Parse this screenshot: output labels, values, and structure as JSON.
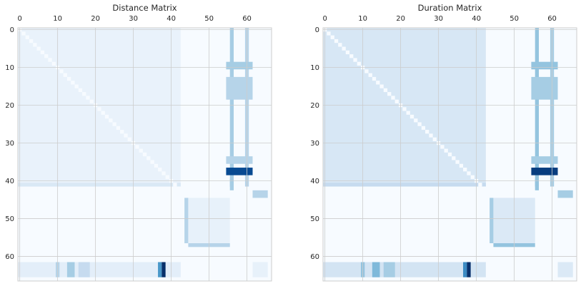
{
  "chart_data": [
    {
      "type": "heatmap",
      "title": "Distance Matrix",
      "size": 67,
      "x_ticks": [
        0,
        10,
        20,
        30,
        40,
        50,
        60
      ],
      "y_ticks": [
        0,
        10,
        20,
        30,
        40,
        50,
        60
      ],
      "xlim": [
        0,
        66
      ],
      "ylim": [
        66,
        0
      ],
      "x_axis_position": "top",
      "colormap": "Blues",
      "grid": true,
      "background_color": "#f7fbff",
      "regions": [
        {
          "rows": [
            0,
            42
          ],
          "cols": [
            0,
            43
          ],
          "value": 0.07
        },
        {
          "rows": [
            0,
            42
          ],
          "cols": [
            56,
            57
          ],
          "value": 0.35
        },
        {
          "rows": [
            0,
            42
          ],
          "cols": [
            60,
            61
          ],
          "value": 0.3
        },
        {
          "rows": [
            9,
            11
          ],
          "cols": [
            55,
            62
          ],
          "value": 0.35
        },
        {
          "rows": [
            13,
            19
          ],
          "cols": [
            55,
            62
          ],
          "value": 0.3
        },
        {
          "rows": [
            34,
            36
          ],
          "cols": [
            55,
            62
          ],
          "value": 0.3
        },
        {
          "rows": [
            37,
            39
          ],
          "cols": [
            55,
            62
          ],
          "value": 0.9
        },
        {
          "rows": [
            40,
            43
          ],
          "cols": [
            56,
            57
          ],
          "value": 0.35
        },
        {
          "rows": [
            41,
            42
          ],
          "cols": [
            0,
            43
          ],
          "value": 0.15
        },
        {
          "rows": [
            43,
            45
          ],
          "cols": [
            62,
            66
          ],
          "value": 0.3
        },
        {
          "rows": [
            45,
            57
          ],
          "cols": [
            44,
            45
          ],
          "value": 0.3
        },
        {
          "rows": [
            45,
            57
          ],
          "cols": [
            45,
            56
          ],
          "value": 0.08
        },
        {
          "rows": [
            57,
            58
          ],
          "cols": [
            45,
            56
          ],
          "value": 0.3
        },
        {
          "rows": [
            62,
            66
          ],
          "cols": [
            0,
            43
          ],
          "value": 0.1
        },
        {
          "rows": [
            62,
            66
          ],
          "cols": [
            10,
            11
          ],
          "value": 0.3
        },
        {
          "rows": [
            62,
            66
          ],
          "cols": [
            13,
            15
          ],
          "value": 0.35
        },
        {
          "rows": [
            62,
            66
          ],
          "cols": [
            16,
            19
          ],
          "value": 0.25
        },
        {
          "rows": [
            62,
            66
          ],
          "cols": [
            37,
            38
          ],
          "value": 0.6
        },
        {
          "rows": [
            62,
            66
          ],
          "cols": [
            38,
            39
          ],
          "value": 1.0
        },
        {
          "rows": [
            62,
            66
          ],
          "cols": [
            62,
            66
          ],
          "value": 0.08
        }
      ]
    },
    {
      "type": "heatmap",
      "title": "Duration Matrix",
      "size": 67,
      "x_ticks": [
        0,
        10,
        20,
        30,
        40,
        50,
        60
      ],
      "y_ticks": [
        0,
        10,
        20,
        30,
        40,
        50,
        60
      ],
      "xlim": [
        0,
        66
      ],
      "ylim": [
        66,
        0
      ],
      "x_axis_position": "top",
      "colormap": "Blues",
      "grid": true,
      "background_color": "#f7fbff",
      "regions": [
        {
          "rows": [
            0,
            42
          ],
          "cols": [
            0,
            43
          ],
          "value": 0.16
        },
        {
          "rows": [
            0,
            42
          ],
          "cols": [
            56,
            57
          ],
          "value": 0.4
        },
        {
          "rows": [
            0,
            42
          ],
          "cols": [
            60,
            61
          ],
          "value": 0.35
        },
        {
          "rows": [
            9,
            11
          ],
          "cols": [
            55,
            62
          ],
          "value": 0.4
        },
        {
          "rows": [
            13,
            19
          ],
          "cols": [
            55,
            62
          ],
          "value": 0.35
        },
        {
          "rows": [
            34,
            36
          ],
          "cols": [
            55,
            62
          ],
          "value": 0.35
        },
        {
          "rows": [
            37,
            39
          ],
          "cols": [
            55,
            62
          ],
          "value": 0.95
        },
        {
          "rows": [
            40,
            43
          ],
          "cols": [
            56,
            57
          ],
          "value": 0.4
        },
        {
          "rows": [
            41,
            42
          ],
          "cols": [
            0,
            43
          ],
          "value": 0.25
        },
        {
          "rows": [
            43,
            45
          ],
          "cols": [
            62,
            66
          ],
          "value": 0.35
        },
        {
          "rows": [
            45,
            57
          ],
          "cols": [
            44,
            45
          ],
          "value": 0.35
        },
        {
          "rows": [
            45,
            57
          ],
          "cols": [
            45,
            56
          ],
          "value": 0.14
        },
        {
          "rows": [
            57,
            58
          ],
          "cols": [
            45,
            56
          ],
          "value": 0.4
        },
        {
          "rows": [
            62,
            66
          ],
          "cols": [
            0,
            43
          ],
          "value": 0.18
        },
        {
          "rows": [
            62,
            66
          ],
          "cols": [
            10,
            11
          ],
          "value": 0.4
        },
        {
          "rows": [
            62,
            66
          ],
          "cols": [
            13,
            15
          ],
          "value": 0.45
        },
        {
          "rows": [
            62,
            66
          ],
          "cols": [
            16,
            19
          ],
          "value": 0.35
        },
        {
          "rows": [
            62,
            66
          ],
          "cols": [
            37,
            38
          ],
          "value": 0.65
        },
        {
          "rows": [
            62,
            66
          ],
          "cols": [
            38,
            39
          ],
          "value": 1.0
        },
        {
          "rows": [
            62,
            66
          ],
          "cols": [
            62,
            66
          ],
          "value": 0.14
        }
      ]
    }
  ]
}
